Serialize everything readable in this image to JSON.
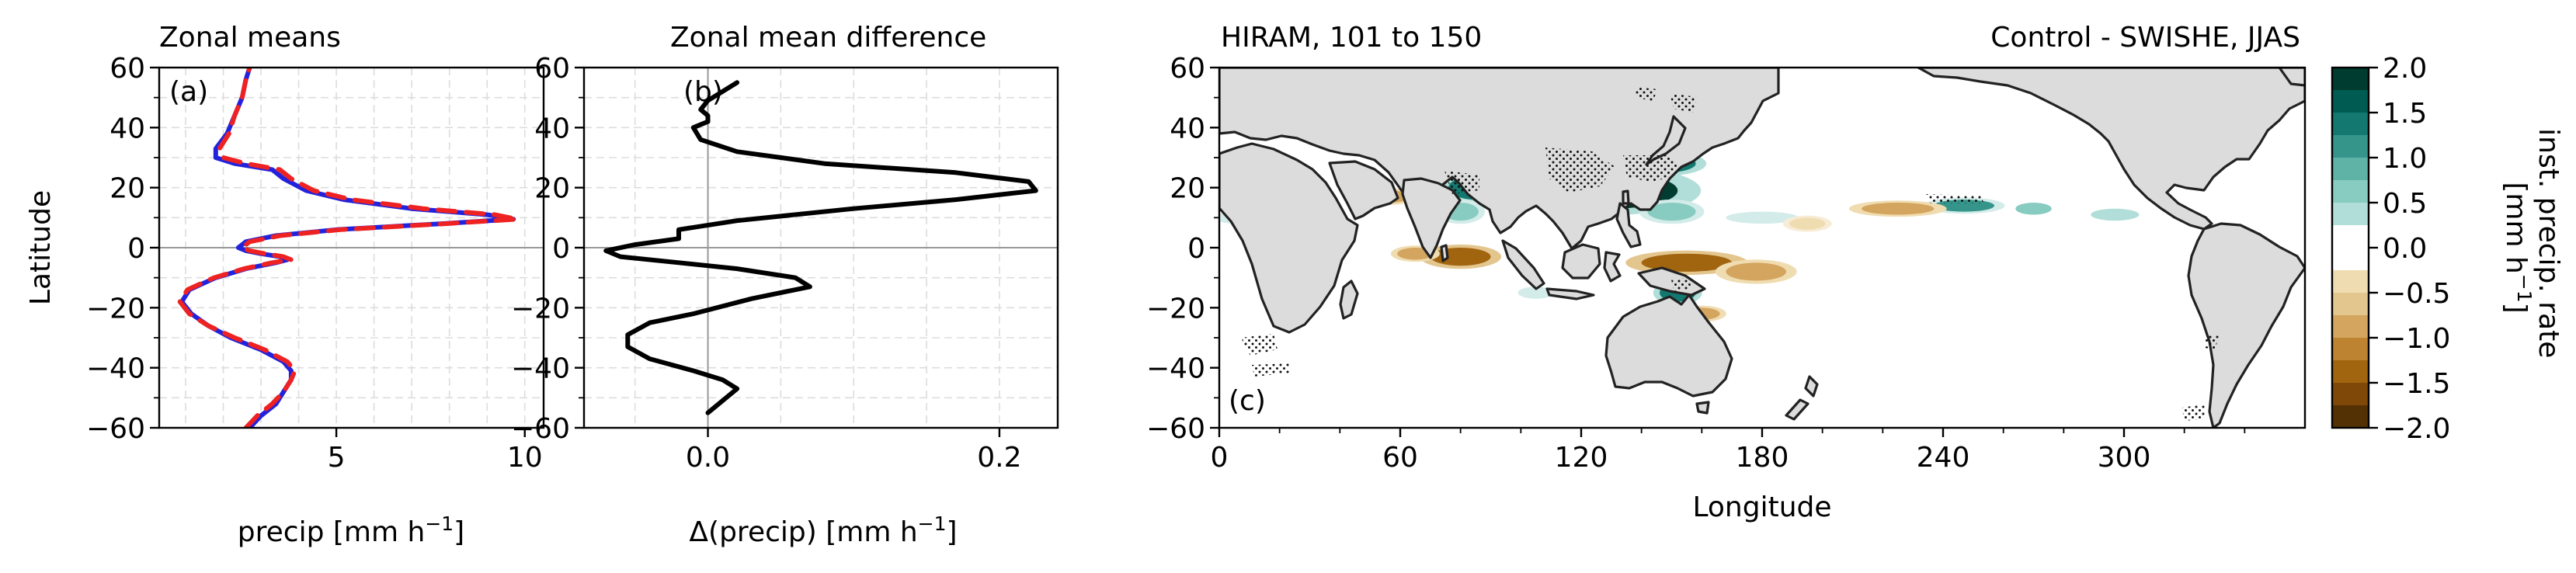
{
  "chart_data": [
    {
      "type": "line",
      "panel_label": "(a)",
      "title": "Zonal means",
      "ylabel": "Latitude",
      "xlabel_main": "precip [mm h",
      "xlabel_sup": "−1",
      "xlabel_end": "]",
      "xlim": [
        0.3,
        10.5
      ],
      "ylim": [
        -60,
        60
      ],
      "xticks": [
        5,
        10
      ],
      "xtick_labels": [
        "5",
        "10"
      ],
      "yticks": [
        -60,
        -40,
        -20,
        0,
        20,
        40,
        60
      ],
      "ytick_labels": [
        "−60",
        "−40",
        "−20",
        "0",
        "20",
        "40",
        "60"
      ],
      "grid": true,
      "series": [
        {
          "color": "#2222dd",
          "style": "solid",
          "points": [
            [
              2.7,
              -60
            ],
            [
              3.0,
              -56
            ],
            [
              3.4,
              -52
            ],
            [
              3.6,
              -48
            ],
            [
              3.8,
              -44
            ],
            [
              3.8,
              -41
            ],
            [
              3.6,
              -38
            ],
            [
              3.0,
              -34
            ],
            [
              2.2,
              -30
            ],
            [
              1.6,
              -26
            ],
            [
              1.15,
              -22
            ],
            [
              0.9,
              -18
            ],
            [
              1.1,
              -14
            ],
            [
              1.8,
              -10
            ],
            [
              2.6,
              -7
            ],
            [
              3.4,
              -5
            ],
            [
              3.7,
              -4
            ],
            [
              3.5,
              -3
            ],
            [
              3.0,
              -2
            ],
            [
              2.6,
              -1
            ],
            [
              2.4,
              0
            ],
            [
              2.6,
              2
            ],
            [
              3.4,
              4
            ],
            [
              5.0,
              6
            ],
            [
              7.8,
              8
            ],
            [
              9.7,
              9.5
            ],
            [
              9.0,
              11
            ],
            [
              7.0,
              13
            ],
            [
              5.2,
              16
            ],
            [
              4.2,
              19
            ],
            [
              3.6,
              23
            ],
            [
              3.3,
              26
            ],
            [
              2.3,
              28
            ],
            [
              1.8,
              30
            ],
            [
              1.8,
              33
            ],
            [
              2.1,
              38
            ],
            [
              2.3,
              44
            ],
            [
              2.5,
              50
            ],
            [
              2.6,
              56
            ],
            [
              2.7,
              60
            ]
          ]
        },
        {
          "color": "#ee2222",
          "style": "dashed",
          "points": [
            [
              2.6,
              -60
            ],
            [
              2.9,
              -56
            ],
            [
              3.3,
              -52
            ],
            [
              3.6,
              -48
            ],
            [
              3.8,
              -44
            ],
            [
              3.9,
              -41
            ],
            [
              3.7,
              -38
            ],
            [
              3.1,
              -34
            ],
            [
              2.3,
              -30
            ],
            [
              1.6,
              -26
            ],
            [
              1.1,
              -22
            ],
            [
              0.85,
              -18
            ],
            [
              1.05,
              -14
            ],
            [
              1.75,
              -10
            ],
            [
              2.55,
              -7
            ],
            [
              3.3,
              -5
            ],
            [
              3.8,
              -4
            ],
            [
              3.6,
              -3
            ],
            [
              3.1,
              -2
            ],
            [
              2.7,
              -1
            ],
            [
              2.5,
              0
            ],
            [
              2.7,
              2
            ],
            [
              3.5,
              4
            ],
            [
              5.1,
              6
            ],
            [
              7.9,
              8
            ],
            [
              9.8,
              9.5
            ],
            [
              9.2,
              11
            ],
            [
              7.3,
              13
            ],
            [
              5.4,
              16
            ],
            [
              4.4,
              19
            ],
            [
              3.8,
              23
            ],
            [
              3.5,
              26
            ],
            [
              2.6,
              28
            ],
            [
              2.0,
              30
            ],
            [
              1.9,
              33
            ],
            [
              2.15,
              38
            ],
            [
              2.3,
              44
            ],
            [
              2.5,
              50
            ],
            [
              2.6,
              56
            ],
            [
              2.7,
              60
            ]
          ]
        }
      ]
    },
    {
      "type": "line",
      "panel_label": "(b)",
      "title": "Zonal mean difference",
      "xlabel_main": "Δ(precip) [mm h",
      "xlabel_sup": "−1",
      "xlabel_end": "]",
      "xlim": [
        -0.085,
        0.24
      ],
      "ylim": [
        -60,
        60
      ],
      "xticks": [
        0.0,
        0.2
      ],
      "xtick_labels": [
        "0.0",
        "0.2"
      ],
      "yticks": [
        -60,
        -40,
        -20,
        0,
        20,
        40,
        60
      ],
      "ytick_labels": [
        "−60",
        "−40",
        "−20",
        "0",
        "20",
        "40",
        "60"
      ],
      "grid": true,
      "series": [
        {
          "color": "#000000",
          "style": "solid",
          "points": [
            [
              0.0,
              -55
            ],
            [
              0.01,
              -51
            ],
            [
              0.02,
              -47
            ],
            [
              0.01,
              -44
            ],
            [
              -0.01,
              -41
            ],
            [
              -0.04,
              -37
            ],
            [
              -0.055,
              -33
            ],
            [
              -0.055,
              -29
            ],
            [
              -0.04,
              -25
            ],
            [
              -0.01,
              -22
            ],
            [
              0.03,
              -17
            ],
            [
              0.07,
              -13
            ],
            [
              0.06,
              -10
            ],
            [
              0.02,
              -7
            ],
            [
              -0.02,
              -5
            ],
            [
              -0.06,
              -3
            ],
            [
              -0.07,
              -1
            ],
            [
              -0.05,
              1
            ],
            [
              -0.02,
              3
            ],
            [
              -0.02,
              6
            ],
            [
              0.02,
              9
            ],
            [
              0.1,
              13
            ],
            [
              0.17,
              16
            ],
            [
              0.225,
              19
            ],
            [
              0.22,
              22
            ],
            [
              0.17,
              25
            ],
            [
              0.08,
              28
            ],
            [
              0.02,
              32
            ],
            [
              -0.005,
              36
            ],
            [
              -0.01,
              40
            ],
            [
              0.0,
              42
            ],
            [
              0.0,
              44
            ],
            [
              -0.005,
              46
            ],
            [
              0.0,
              49
            ],
            [
              0.01,
              52
            ],
            [
              0.02,
              55
            ]
          ]
        }
      ]
    },
    {
      "type": "heatmap",
      "panel_label": "(c)",
      "title_left": "HIRAM, 101 to 150",
      "title_right": "Control - SWISHE, JJAS",
      "xlabel": "Longitude",
      "xlim": [
        0,
        360
      ],
      "ylim": [
        -60,
        60
      ],
      "xticks": [
        0,
        60,
        120,
        180,
        240,
        300
      ],
      "xtick_labels": [
        "0",
        "60",
        "120",
        "180",
        "240",
        "300"
      ],
      "yticks": [
        -60,
        -40,
        -20,
        0,
        20,
        40,
        60
      ],
      "ytick_labels": [
        "−60",
        "−40",
        "−20",
        "0",
        "20",
        "40",
        "60"
      ],
      "regions": [
        {
          "lon": 85,
          "lat": 20,
          "rlon": 9,
          "rlat": 4,
          "value": 1.8
        },
        {
          "lon": 80,
          "lat": 12,
          "rlon": 6,
          "rlat": 3,
          "value": 1.2
        },
        {
          "lon": 130,
          "lat": 19,
          "rlon": 22,
          "rlat": 6,
          "value": 2.0
        },
        {
          "lon": 122,
          "lat": 30,
          "rlon": 6,
          "rlat": 4,
          "value": 1.5
        },
        {
          "lon": 148,
          "lat": 28,
          "rlon": 10,
          "rlat": 3,
          "value": 1.8
        },
        {
          "lon": 150,
          "lat": 12,
          "rlon": 8,
          "rlat": 3,
          "value": 1.2
        },
        {
          "lon": 143,
          "lat": 39,
          "rlon": 5,
          "rlat": 3,
          "value": 1.0
        },
        {
          "lon": 98,
          "lat": 23,
          "rlon": 5,
          "rlat": 3,
          "value": 1.0
        },
        {
          "lon": 247,
          "lat": 14,
          "rlon": 10,
          "rlat": 2,
          "value": 1.5
        },
        {
          "lon": 270,
          "lat": 13,
          "rlon": 6,
          "rlat": 2,
          "value": 1.0
        },
        {
          "lon": 297,
          "lat": 11,
          "rlon": 8,
          "rlat": 2,
          "value": 0.8
        },
        {
          "lon": 5,
          "lat": 10,
          "rlon": 6,
          "rlat": 2,
          "value": 0.6
        },
        {
          "lon": 180,
          "lat": 10,
          "rlon": 12,
          "rlat": 2,
          "value": 0.5
        },
        {
          "lon": 152,
          "lat": -15,
          "rlon": 6,
          "rlat": 3,
          "value": 1.8
        },
        {
          "lon": 205,
          "lat": 5,
          "rlon": 15,
          "rlat": 2,
          "value": 0.4
        },
        {
          "lon": 105,
          "lat": -15,
          "rlon": 6,
          "rlat": 2,
          "value": 0.5
        },
        {
          "lon": 95,
          "lat": 45,
          "rlon": 10,
          "rlat": 3,
          "value": 0.4
        },
        {
          "lon": 105,
          "lat": 28,
          "rlon": 5,
          "rlat": 3,
          "value": -1.5
        },
        {
          "lon": 100,
          "lat": 26,
          "rlon": 5,
          "rlat": 2,
          "value": -1.0
        },
        {
          "lon": 57,
          "lat": 17,
          "rlon": 6,
          "rlat": 2,
          "value": -0.8
        },
        {
          "lon": 80,
          "lat": -3,
          "rlon": 10,
          "rlat": 3,
          "value": -1.5
        },
        {
          "lon": 65,
          "lat": -2,
          "rlon": 6,
          "rlat": 2,
          "value": -1.0
        },
        {
          "lon": 155,
          "lat": -5,
          "rlon": 15,
          "rlat": 3,
          "value": -1.5
        },
        {
          "lon": 178,
          "lat": -8,
          "rlon": 10,
          "rlat": 3,
          "value": -1.0
        },
        {
          "lon": 225,
          "lat": 13,
          "rlon": 12,
          "rlat": 2,
          "value": -1.0
        },
        {
          "lon": 160,
          "lat": -22,
          "rlon": 6,
          "rlat": 2,
          "value": -0.8
        },
        {
          "lon": 140,
          "lat": 30,
          "rlon": 4,
          "rlat": 2,
          "value": -0.5
        },
        {
          "lon": 195,
          "lat": 8,
          "rlon": 6,
          "rlat": 2,
          "value": -0.5
        }
      ],
      "colorbar": {
        "label_main": "inst. precip. rate",
        "label_line2": "[mm h",
        "label_sup": "−1",
        "label_end": "]",
        "levels": [
          -2.0,
          -1.75,
          -1.5,
          -1.25,
          -1.0,
          -0.75,
          -0.5,
          -0.25,
          0.0,
          0.25,
          0.5,
          0.75,
          1.0,
          1.25,
          1.5,
          1.75,
          2.0
        ],
        "colors": [
          "#543005",
          "#7f4808",
          "#a1650f",
          "#be8330",
          "#d3a55f",
          "#e3c58e",
          "#f0dcb1",
          "#f7ecd6",
          "#ffffff",
          "#ffffff",
          "#d3ece9",
          "#b1ded8",
          "#88ccc1",
          "#5fb2a6",
          "#35958b",
          "#137970",
          "#005c53",
          "#003c30"
        ],
        "ticks": [
          -2.0,
          -1.5,
          -1.0,
          -0.5,
          0.0,
          0.5,
          1.0,
          1.5,
          2.0
        ],
        "tick_labels": [
          "−2.0",
          "−1.5",
          "−1.0",
          "−0.5",
          "0.0",
          "0.5",
          "1.0",
          "1.5",
          "2.0"
        ]
      }
    }
  ]
}
